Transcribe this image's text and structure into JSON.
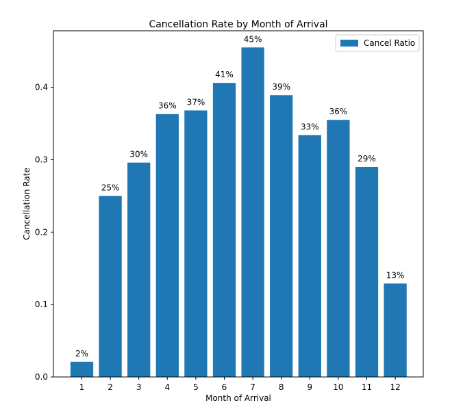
{
  "chart_data": {
    "type": "bar",
    "title": "Cancellation Rate by Month of Arrival",
    "xlabel": "Month of Arrival",
    "ylabel": "Cancellation Rate",
    "categories": [
      "1",
      "2",
      "3",
      "4",
      "5",
      "6",
      "7",
      "8",
      "9",
      "10",
      "11",
      "12"
    ],
    "values": [
      0.021,
      0.25,
      0.296,
      0.363,
      0.368,
      0.406,
      0.455,
      0.389,
      0.334,
      0.355,
      0.29,
      0.129
    ],
    "data_labels": [
      "2%",
      "25%",
      "30%",
      "36%",
      "37%",
      "41%",
      "45%",
      "39%",
      "33%",
      "36%",
      "29%",
      "13%"
    ],
    "ylim": [
      0,
      0.478
    ],
    "yticks": [
      0.0,
      0.1,
      0.2,
      0.3,
      0.4
    ],
    "ytick_labels": [
      "0.0",
      "0.1",
      "0.2",
      "0.3",
      "0.4"
    ],
    "legend": {
      "label": "Cancel Ratio",
      "position": "top-right"
    },
    "grid": false,
    "bar_color": "#1f77b4"
  }
}
